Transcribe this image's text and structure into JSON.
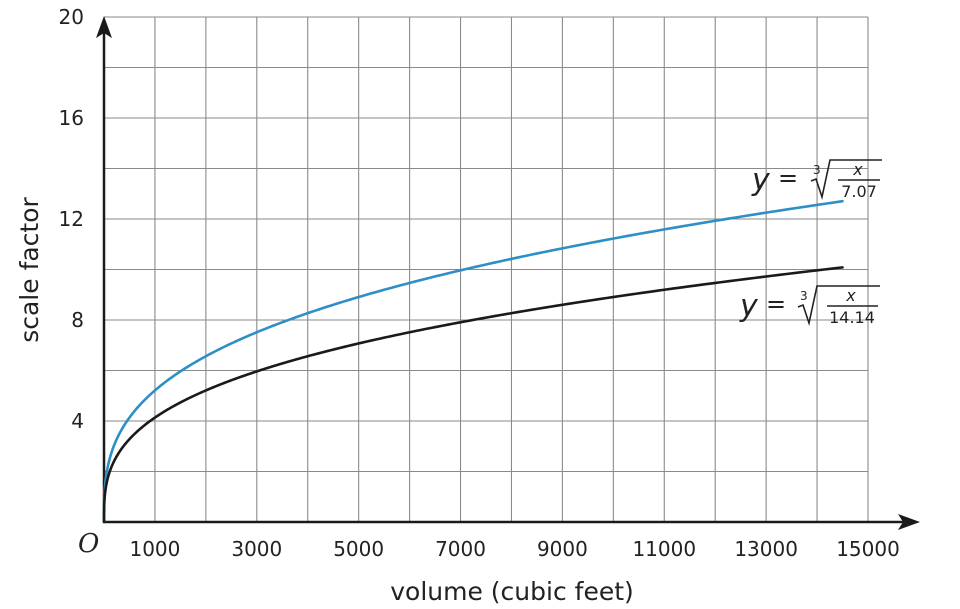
{
  "chart_data": {
    "type": "line",
    "xlabel": "volume (cubic feet)",
    "ylabel": "scale factor",
    "origin_label": "O",
    "xlim": [
      0,
      15000
    ],
    "ylim": [
      0,
      20
    ],
    "x_ticks": [
      {
        "value": 1000,
        "label": "1000"
      },
      {
        "value": 3000,
        "label": "3000"
      },
      {
        "value": 5000,
        "label": "5000"
      },
      {
        "value": 7000,
        "label": "7000"
      },
      {
        "value": 9000,
        "label": "9000"
      },
      {
        "value": 11000,
        "label": "11000"
      },
      {
        "value": 13000,
        "label": "13000"
      },
      {
        "value": 15000,
        "label": "15000"
      }
    ],
    "y_ticks": [
      {
        "value": 4,
        "label": "4"
      },
      {
        "value": 8,
        "label": "8"
      },
      {
        "value": 12,
        "label": "12"
      },
      {
        "value": 16,
        "label": "16"
      },
      {
        "value": 20,
        "label": "20"
      }
    ],
    "grid": {
      "on": true,
      "x_step": 1000,
      "y_step": 2
    },
    "series": [
      {
        "label": {
          "lhs": "y",
          "eq": "=",
          "root_index": "3",
          "numerator": "x",
          "denominator": "7.07"
        },
        "divisor": 7.07,
        "color": "#2e8fc7",
        "x": [
          0,
          500,
          1000,
          2000,
          3000,
          4000,
          5000,
          6000,
          7000,
          8000,
          9000,
          10000,
          11000,
          12000,
          13000,
          14000,
          14500
        ],
        "y": [
          0,
          4.13,
          5.21,
          6.56,
          7.51,
          8.27,
          8.91,
          9.46,
          9.97,
          10.42,
          10.84,
          11.23,
          11.58,
          11.93,
          12.25,
          12.56,
          12.7
        ]
      },
      {
        "label": {
          "lhs": "y",
          "eq": "=",
          "root_index": "3",
          "numerator": "x",
          "denominator": "14.14"
        },
        "divisor": 14.14,
        "color": "#1a1a1a",
        "x": [
          0,
          500,
          1000,
          2000,
          3000,
          4000,
          5000,
          6000,
          7000,
          8000,
          9000,
          10000,
          11000,
          12000,
          13000,
          14000,
          14500
        ],
        "y": [
          0,
          3.28,
          4.13,
          5.21,
          5.96,
          6.56,
          7.07,
          7.51,
          7.91,
          8.27,
          8.6,
          8.91,
          9.2,
          9.46,
          9.72,
          9.97,
          10.09
        ]
      }
    ]
  }
}
